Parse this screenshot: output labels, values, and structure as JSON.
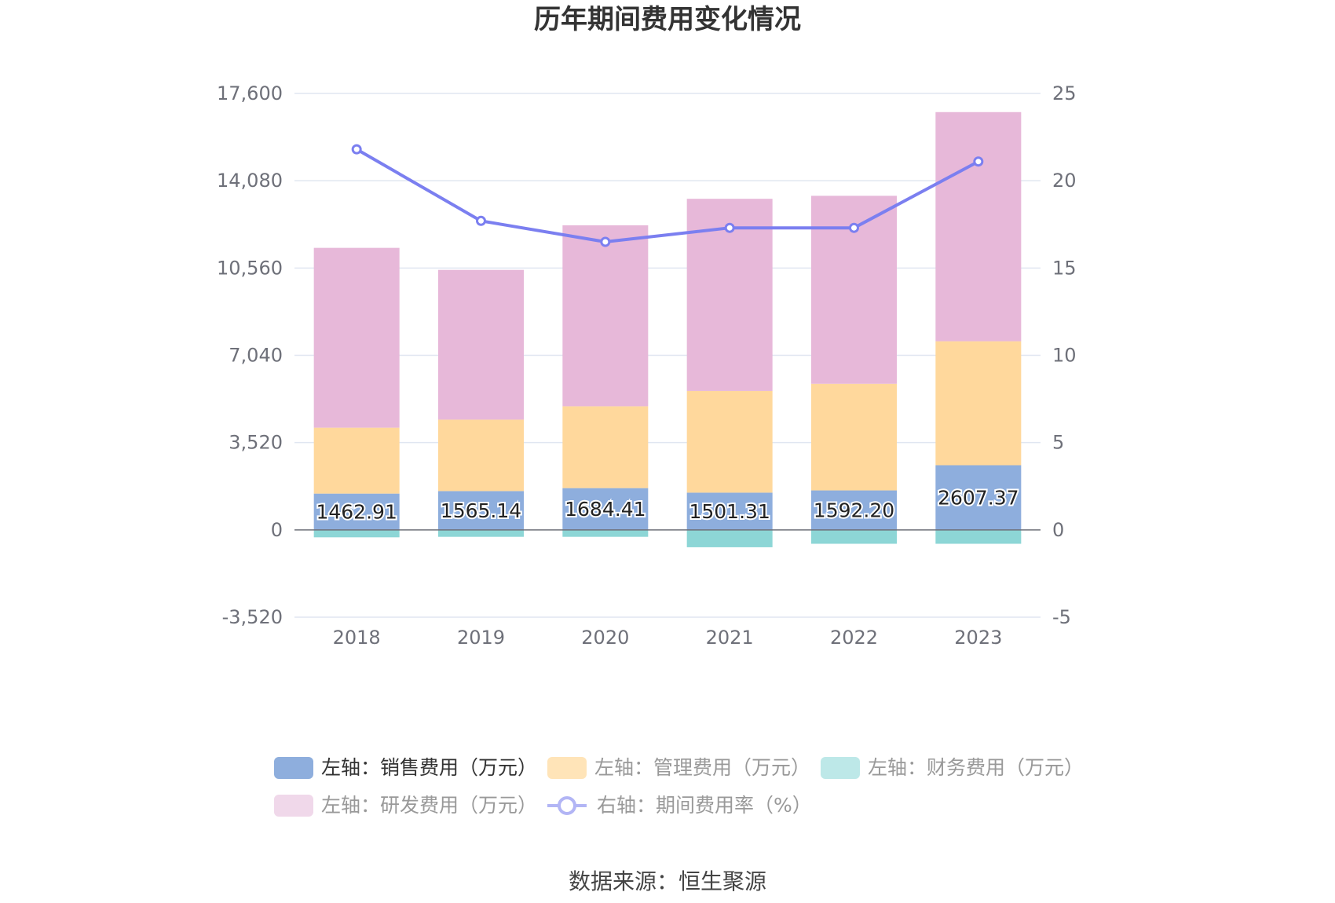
{
  "chart_data": {
    "type": "bar",
    "title": "历年期间费用变化情况",
    "categories": [
      "2018",
      "2019",
      "2020",
      "2021",
      "2022",
      "2023"
    ],
    "y_left": {
      "min": -3520,
      "max": 17600,
      "ticks": [
        "-3,520",
        "0",
        "3,520",
        "7,040",
        "10,560",
        "14,080",
        "17,600"
      ],
      "tick_values": [
        -3520,
        0,
        3520,
        7040,
        10560,
        14080,
        17600
      ]
    },
    "y_right": {
      "min": -5,
      "max": 25,
      "ticks": [
        "-5",
        "0",
        "5",
        "10",
        "15",
        "20",
        "25"
      ],
      "tick_values": [
        -5,
        0,
        5,
        10,
        15,
        20,
        25
      ]
    },
    "grid": true,
    "legend_position": "bottom",
    "series": [
      {
        "name": "左轴：销售费用（万元）",
        "axis": "left",
        "kind": "bar",
        "color": "#8eaedd",
        "values": [
          1462.91,
          1565.14,
          1684.41,
          1501.31,
          1592.2,
          2607.37
        ],
        "labels": [
          "1462.91",
          "1565.14",
          "1684.41",
          "1501.31",
          "1592.20",
          "2607.37"
        ]
      },
      {
        "name": "左轴：管理费用（万元）",
        "axis": "left",
        "kind": "bar",
        "color": "#ffd89c",
        "values": [
          2660,
          2880,
          3300,
          4100,
          4300,
          5000
        ]
      },
      {
        "name": "左轴：财务费用（万元）",
        "axis": "left",
        "kind": "bar",
        "color": "#8dd6d6",
        "values": [
          -300,
          -280,
          -280,
          -700,
          -560,
          -560
        ]
      },
      {
        "name": "左轴：研发费用（万元）",
        "axis": "left",
        "kind": "bar",
        "color": "#e7b8d9",
        "values": [
          7250,
          6040,
          7300,
          7750,
          7580,
          9240
        ]
      },
      {
        "name": "右轴：期间费用率（%）",
        "axis": "right",
        "kind": "line",
        "color": "#7b7ff0",
        "values": [
          21.8,
          17.7,
          16.5,
          17.3,
          17.3,
          21.1
        ]
      }
    ],
    "legend_colors": {
      "sales": "#8eaedd",
      "admin": "#ffe4b8",
      "finance": "#bde8e8",
      "rd": "#f0d8ea",
      "rate": "#b2b5f5"
    },
    "source": "数据来源：恒生聚源"
  }
}
